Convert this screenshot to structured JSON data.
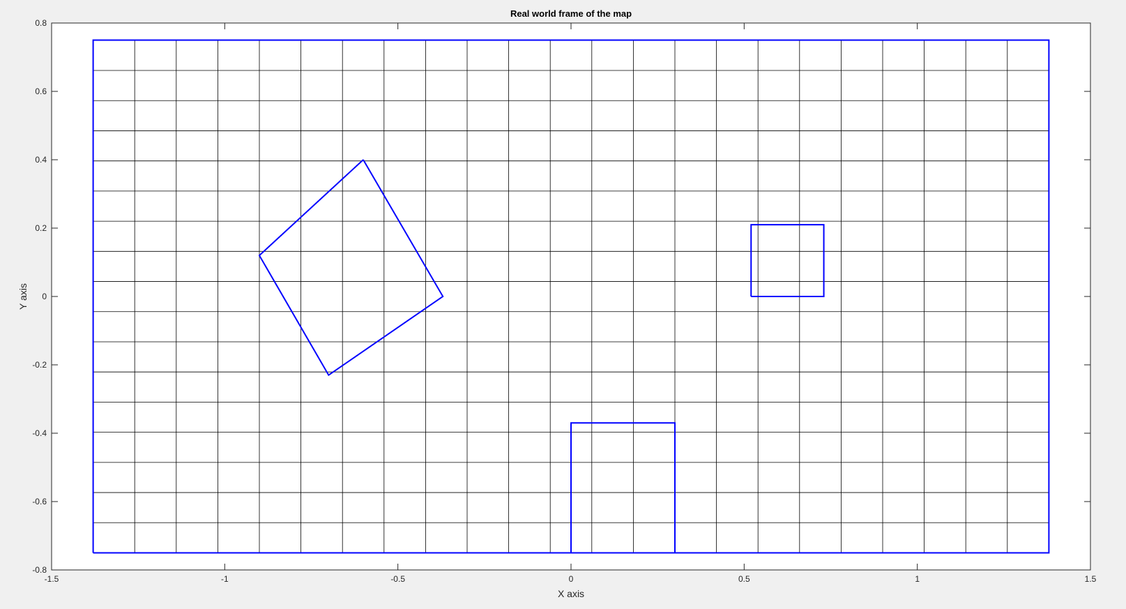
{
  "chart_data": {
    "type": "line",
    "title": "Real world frame of the map",
    "xlabel": "X axis",
    "ylabel": "Y axis",
    "xlim": [
      -1.5,
      1.5
    ],
    "ylim": [
      -0.8,
      0.8
    ],
    "xticks": [
      -1.5,
      -1,
      -0.5,
      0,
      0.5,
      1,
      1.5
    ],
    "xtick_labels": [
      "-1.5",
      "-1",
      "-0.5",
      "0",
      "0.5",
      "1",
      "1.5"
    ],
    "yticks": [
      -0.8,
      -0.6,
      -0.4,
      -0.2,
      0,
      0.2,
      0.4,
      0.6,
      0.8
    ],
    "ytick_labels": [
      "-0.8",
      "-0.6",
      "-0.4",
      "-0.2",
      "0",
      "0.2",
      "0.4",
      "0.6",
      "0.8"
    ],
    "grid": {
      "x_min": -1.38,
      "x_max": 1.38,
      "x_step": 0.12,
      "y_min": -0.75,
      "y_max": 0.75,
      "y_step": 0.0882,
      "color": "#000000"
    },
    "series": [
      {
        "x": [
          -1.38,
          1.38,
          1.38,
          -1.38,
          -1.38
        ],
        "y": [
          -0.75,
          -0.75,
          0.75,
          0.75,
          -0.75
        ],
        "color": "#0000ff"
      },
      {
        "x": [
          -0.6,
          -0.37,
          -0.7,
          -0.9,
          -0.6
        ],
        "y": [
          0.4,
          0.0,
          -0.23,
          0.12,
          0.4
        ],
        "color": "#0000ff"
      },
      {
        "x": [
          0.52,
          0.73,
          0.73,
          0.52,
          0.52
        ],
        "y": [
          0.0,
          0.0,
          0.21,
          0.21,
          0.0
        ],
        "color": "#0000ff"
      },
      {
        "x": [
          0.0,
          0.3,
          0.3,
          0.0,
          0.0
        ],
        "y": [
          -0.75,
          -0.75,
          -0.37,
          -0.37,
          -0.75
        ],
        "color": "#0000ff"
      }
    ]
  }
}
